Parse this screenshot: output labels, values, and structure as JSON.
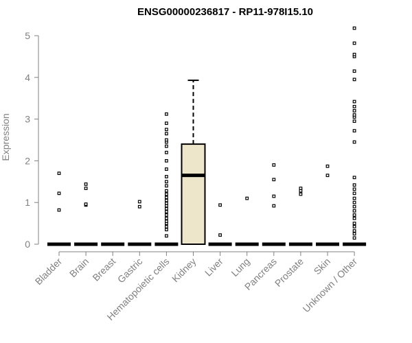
{
  "chart_data": {
    "type": "box",
    "title": "ENSG00000236817 - RP11-978I15.10",
    "xlabel": "",
    "ylabel": "Expression",
    "ylim": [
      0,
      5.2
    ],
    "yticks": [
      0,
      1,
      2,
      3,
      4,
      5
    ],
    "categories": [
      "Bladder",
      "Brain",
      "Breast",
      "Gastric",
      "Hematopoietic cells",
      "Kidney",
      "Liver",
      "Lung",
      "Pancreas",
      "Prostate",
      "Skin",
      "Unknown / Other"
    ],
    "boxes": [
      {
        "category": "Bladder",
        "q1": 0,
        "median": 0,
        "q3": 0,
        "whisker_low": 0,
        "whisker_high": 0,
        "outliers": [
          0.82,
          1.22,
          1.7
        ]
      },
      {
        "category": "Brain",
        "q1": 0,
        "median": 0,
        "q3": 0,
        "whisker_low": 0,
        "whisker_high": 0,
        "outliers": [
          0.94,
          0.96,
          1.34,
          1.44
        ]
      },
      {
        "category": "Breast",
        "q1": 0,
        "median": 0,
        "q3": 0,
        "whisker_low": 0,
        "whisker_high": 0,
        "outliers": []
      },
      {
        "category": "Gastric",
        "q1": 0,
        "median": 0,
        "q3": 0,
        "whisker_low": 0,
        "whisker_high": 0,
        "outliers": [
          0.9,
          1.02
        ]
      },
      {
        "category": "Hematopoietic cells",
        "q1": 0,
        "median": 0,
        "q3": 0,
        "whisker_low": 0,
        "whisker_high": 0,
        "outliers": [
          0.2,
          0.35,
          0.42,
          0.5,
          0.55,
          0.62,
          0.7,
          0.78,
          0.85,
          0.92,
          0.98,
          1.05,
          1.12,
          1.2,
          1.28,
          1.4,
          1.5,
          1.62,
          1.8,
          2.0,
          2.2,
          2.35,
          2.45,
          2.5,
          2.65,
          2.75,
          2.9,
          3.12
        ]
      },
      {
        "category": "Kidney",
        "q1": 0,
        "median": 1.65,
        "q3": 2.4,
        "whisker_low": 0,
        "whisker_high": 3.93,
        "outliers": []
      },
      {
        "category": "Liver",
        "q1": 0,
        "median": 0,
        "q3": 0,
        "whisker_low": 0,
        "whisker_high": 0,
        "outliers": [
          0.22,
          0.94
        ]
      },
      {
        "category": "Lung",
        "q1": 0,
        "median": 0,
        "q3": 0,
        "whisker_low": 0,
        "whisker_high": 0,
        "outliers": [
          1.1
        ]
      },
      {
        "category": "Pancreas",
        "q1": 0,
        "median": 0,
        "q3": 0,
        "whisker_low": 0,
        "whisker_high": 0,
        "outliers": [
          0.92,
          1.15,
          1.55,
          1.9
        ]
      },
      {
        "category": "Prostate",
        "q1": 0,
        "median": 0,
        "q3": 0,
        "whisker_low": 0,
        "whisker_high": 0,
        "outliers": [
          1.2,
          1.28,
          1.34
        ]
      },
      {
        "category": "Skin",
        "q1": 0,
        "median": 0,
        "q3": 0,
        "whisker_low": 0,
        "whisker_high": 0,
        "outliers": [
          1.65,
          1.87
        ]
      },
      {
        "category": "Unknown / Other",
        "q1": 0,
        "median": 0,
        "q3": 0,
        "whisker_low": 0,
        "whisker_high": 0,
        "outliers": [
          0.15,
          0.25,
          0.32,
          0.42,
          0.5,
          0.62,
          0.7,
          0.8,
          0.9,
          1.0,
          1.1,
          1.22,
          1.32,
          1.42,
          1.6,
          2.45,
          2.72,
          2.95,
          3.05,
          3.1,
          3.2,
          3.3,
          3.42,
          3.95,
          4.15,
          4.5,
          4.55,
          4.82,
          5.18
        ]
      }
    ],
    "colors": {
      "box_fill": "#ede6cb",
      "box_stroke": "#000000",
      "axis": "#808080",
      "text": "#808080",
      "title": "#000000"
    },
    "grid": false,
    "legend": "none"
  }
}
